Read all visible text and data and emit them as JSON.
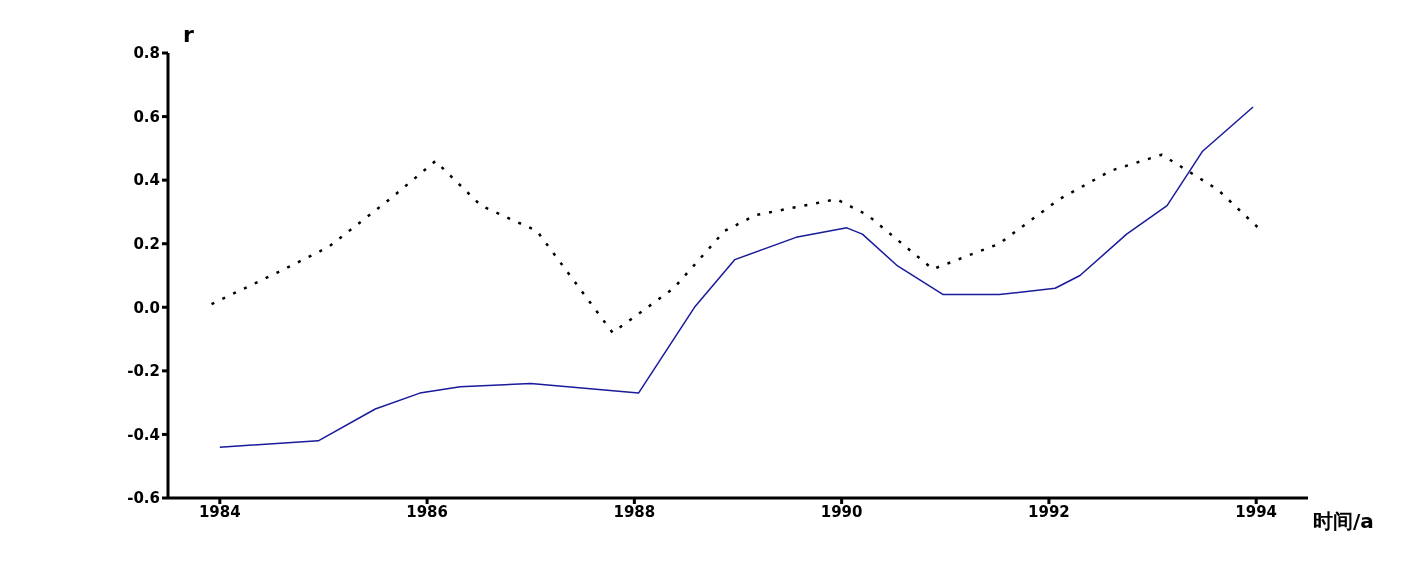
{
  "chart_data": {
    "type": "line",
    "xlabel": "时间/a",
    "ylabel": "r",
    "xlim": [
      1983.5,
      1994.5
    ],
    "xticks": [
      1984,
      1986,
      1988,
      1990,
      1992,
      1994
    ],
    "ylim": [
      -0.6,
      0.8
    ],
    "yticks": [
      {
        "value": 0.8,
        "label": "0.8"
      },
      {
        "value": 0.6,
        "label": "0.6"
      },
      {
        "value": 0.4,
        "label": "0.4"
      },
      {
        "value": 0.2,
        "label": "0.2"
      },
      {
        "value": 0,
        "label": "0.0"
      },
      {
        "value": -0.2,
        "label": "-0.2"
      },
      {
        "value": -0.4,
        "label": "-0.4"
      },
      {
        "value": -0.6,
        "label": "-0.6"
      }
    ],
    "grid": false,
    "legend": false,
    "marker": "none",
    "series": [
      {
        "color": "#1a1a9a",
        "line_style": "solid",
        "x": [
          1984.0,
          1984.95,
          1985.5,
          1985.93,
          1986.32,
          1987.0,
          1988.04,
          1988.58,
          1988.97,
          1989.56,
          1990.05,
          1990.2,
          1990.54,
          1990.98,
          1991.52,
          1992.06,
          1992.3,
          1992.75,
          1993.14,
          1993.48,
          1993.97
        ],
        "values": [
          -0.44,
          -0.42,
          -0.32,
          -0.27,
          -0.25,
          -0.24,
          -0.27,
          0.0,
          0.15,
          0.22,
          0.25,
          0.23,
          0.13,
          0.04,
          0.04,
          0.06,
          0.1,
          0.23,
          0.32,
          0.49,
          0.63
        ]
      },
      {
        "color": "#000000",
        "line_style": "dotted",
        "x": [
          1983.92,
          1984.56,
          1985.05,
          1985.64,
          1986.08,
          1986.52,
          1987.06,
          1987.79,
          1988.38,
          1988.87,
          1989.17,
          1989.95,
          1990.25,
          1990.88,
          1991.52,
          1992.1,
          1992.6,
          1993.09,
          1993.63,
          1994.02
        ],
        "values": [
          0.01,
          0.11,
          0.19,
          0.34,
          0.46,
          0.32,
          0.24,
          -0.08,
          0.06,
          0.24,
          0.29,
          0.34,
          0.29,
          0.12,
          0.2,
          0.34,
          0.43,
          0.48,
          0.37,
          0.25
        ]
      }
    ]
  }
}
